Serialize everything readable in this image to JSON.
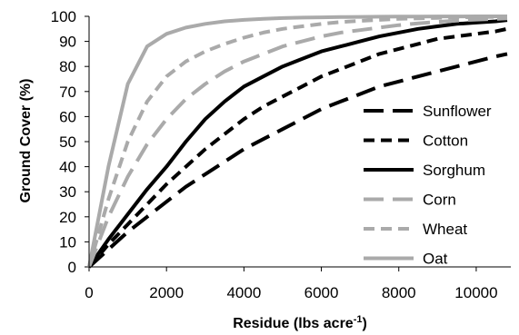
{
  "chart_data": {
    "type": "line",
    "xlabel": "Residue (lbs acre",
    "xlabel_sup": "-1",
    "xlabel_end": ")",
    "ylabel": "Ground Cover (%)",
    "xlim": [
      0,
      10800
    ],
    "ylim": [
      0,
      100
    ],
    "x_ticks": [
      0,
      2000,
      4000,
      6000,
      8000,
      10000
    ],
    "y_ticks": [
      0,
      10,
      20,
      30,
      40,
      50,
      60,
      70,
      80,
      90,
      100
    ],
    "grid": false,
    "legend_position": "right",
    "x": [
      0,
      500,
      1000,
      1500,
      2000,
      2500,
      3000,
      3500,
      4000,
      4500,
      5000,
      5500,
      6000,
      6500,
      7000,
      7500,
      8000,
      8500,
      9000,
      9500,
      10000,
      10500,
      10800
    ],
    "series": [
      {
        "name": "Sunflower",
        "color": "#000000",
        "dash": "long",
        "values": [
          0,
          7,
          14,
          20,
          26,
          32,
          37,
          42,
          47,
          51,
          55,
          59,
          63,
          66,
          69,
          72,
          74,
          76,
          78,
          80,
          82,
          84,
          85
        ]
      },
      {
        "name": "Cotton",
        "color": "#000000",
        "dash": "short",
        "values": [
          0,
          9,
          17,
          25,
          33,
          40,
          47,
          53,
          59,
          64,
          68,
          72,
          76,
          79,
          82,
          85,
          87,
          89,
          91,
          92,
          93,
          94,
          95
        ]
      },
      {
        "name": "Sorghum",
        "color": "#000000",
        "dash": "solid",
        "values": [
          0,
          11,
          21,
          31,
          40,
          50,
          59,
          66,
          72,
          76,
          80,
          83,
          86,
          88,
          90,
          92,
          93.5,
          95,
          96,
          97,
          97.5,
          98,
          98.5
        ]
      },
      {
        "name": "Corn",
        "color": "#aaaaaa",
        "dash": "long",
        "values": [
          0,
          20,
          36,
          49,
          59,
          67,
          73,
          78,
          82,
          85,
          88,
          90,
          92,
          93.5,
          94.5,
          95.5,
          96.5,
          97.2,
          97.8,
          98.3,
          98.7,
          99,
          99.2
        ]
      },
      {
        "name": "Wheat",
        "color": "#aaaaaa",
        "dash": "short",
        "values": [
          0,
          27,
          50,
          66,
          76,
          82,
          86,
          89,
          91.5,
          93.5,
          95,
          96,
          97,
          97.7,
          98.2,
          98.6,
          99,
          99.2,
          99.4,
          99.6,
          99.7,
          99.8,
          99.8
        ]
      },
      {
        "name": "Oat",
        "color": "#aaaaaa",
        "dash": "solid",
        "values": [
          0,
          40,
          73,
          88,
          93,
          95.5,
          97,
          98,
          98.6,
          99,
          99.3,
          99.5,
          99.6,
          99.7,
          99.8,
          99.85,
          99.9,
          99.9,
          99.95,
          99.95,
          100,
          100,
          100
        ]
      }
    ]
  }
}
